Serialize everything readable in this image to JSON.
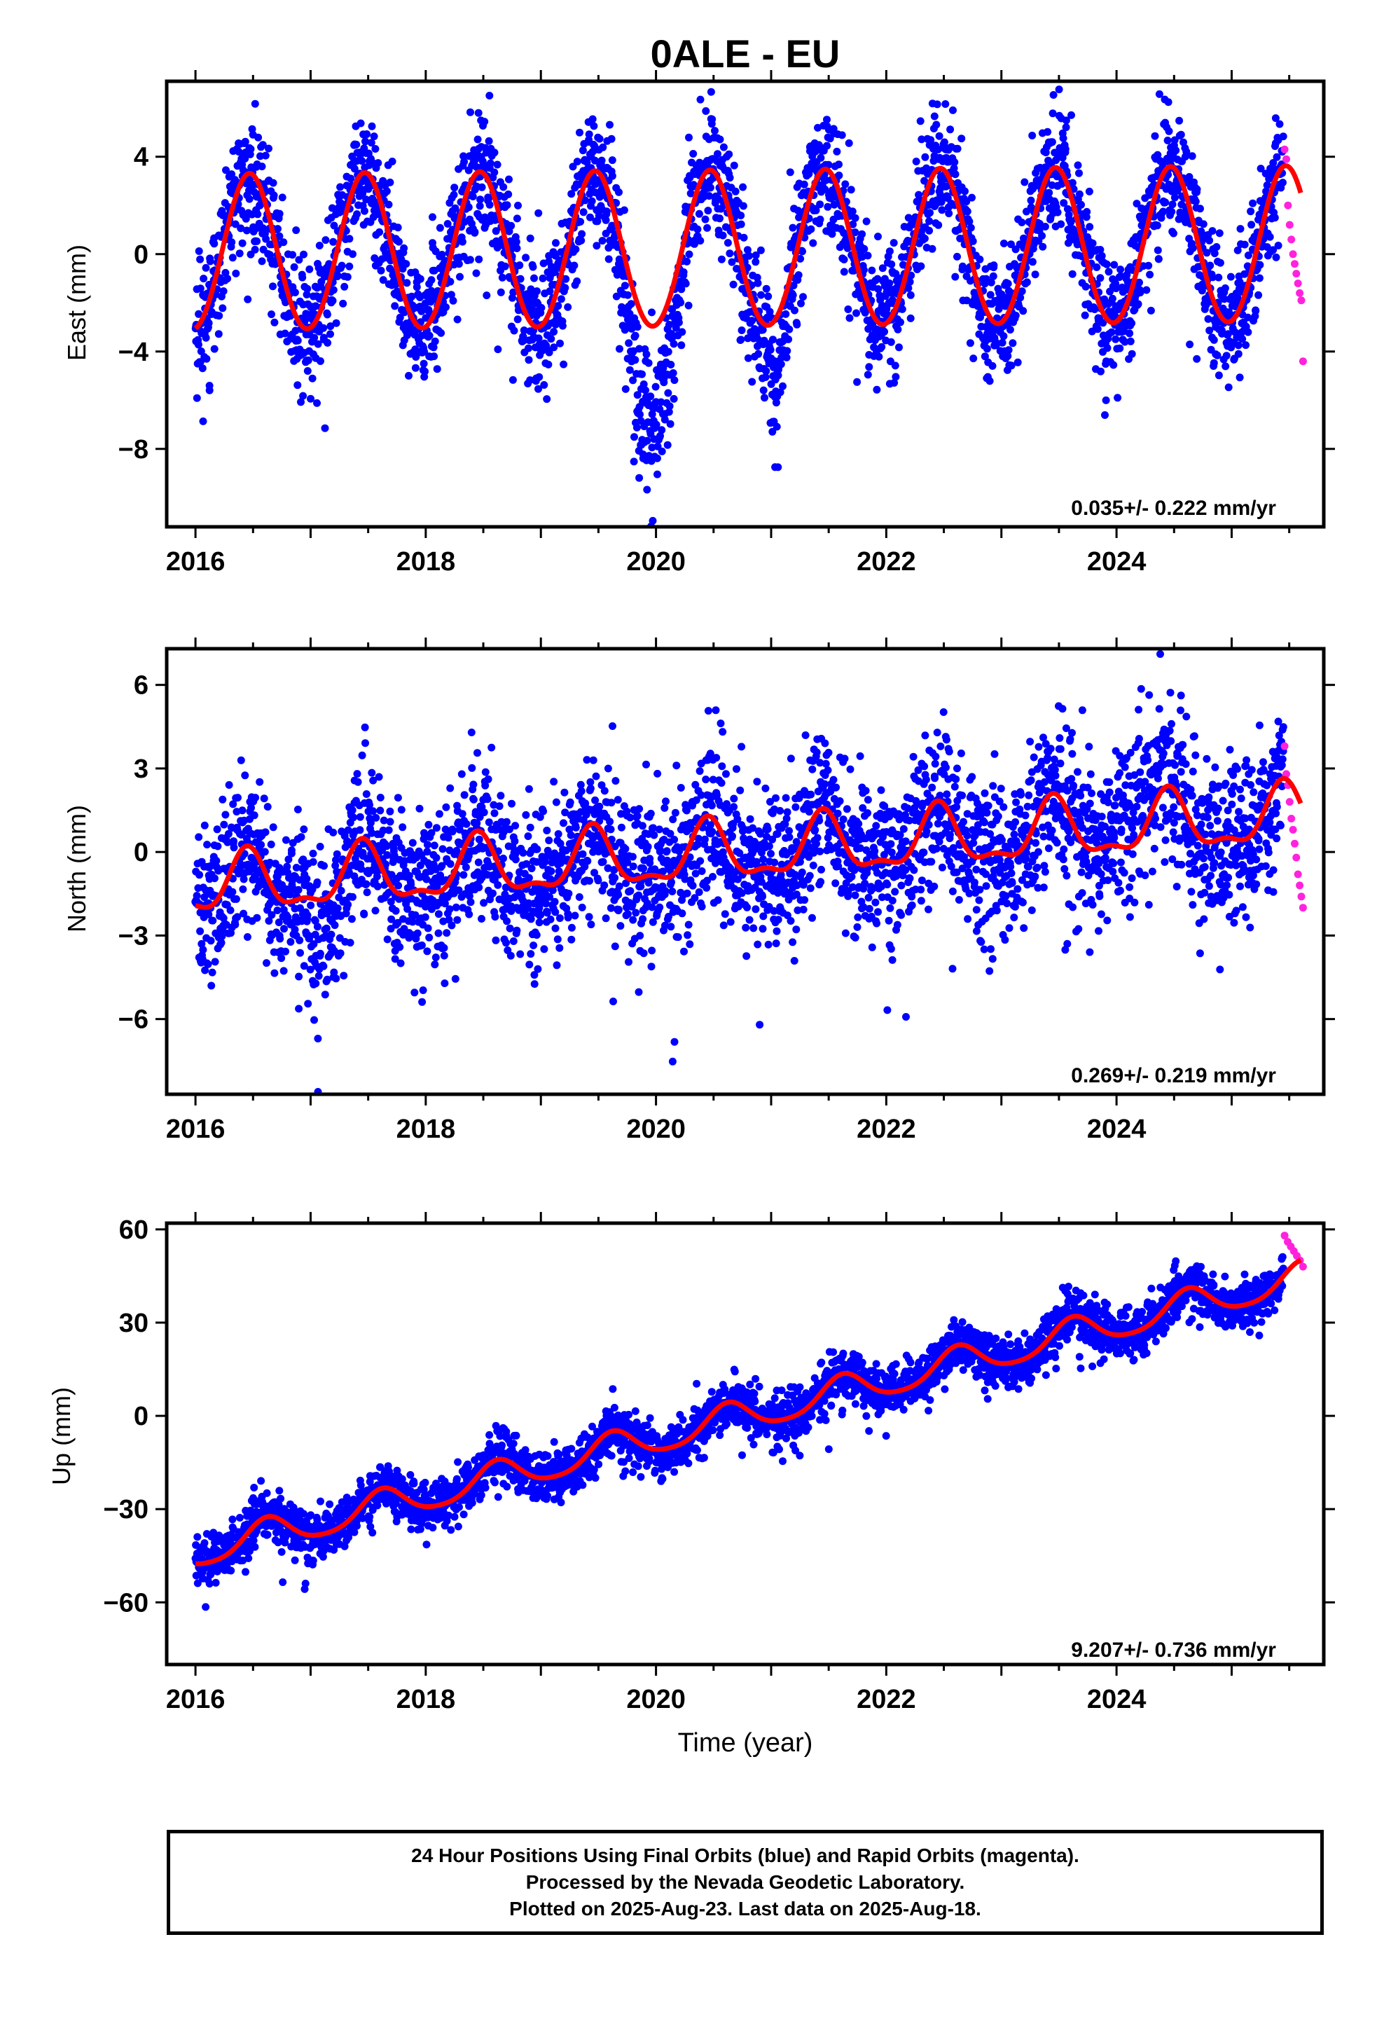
{
  "title": "0ALE - EU",
  "colors": {
    "final": "#0000ff",
    "rapid": "#ff22dd",
    "model": "#ff0000",
    "frame": "#000000"
  },
  "chart_data": [
    {
      "type": "scatter",
      "panel": "east",
      "ylabel": "East (mm)",
      "xlim": [
        2015.75,
        2025.8
      ],
      "ylim": [
        -11.2,
        7.1
      ],
      "x_ticks": [
        2016,
        2018,
        2020,
        2022,
        2024
      ],
      "y_ticks": [
        4,
        0,
        -4,
        -8
      ],
      "y_tick_labels": [
        "4",
        "0",
        "−4",
        "−8"
      ],
      "rate_label": "0.035+/- 0.222 mm/yr",
      "rate": 0.035,
      "rate_error": 0.222,
      "model": {
        "annual_amplitude": 3.2,
        "peak_fraction": 0.47,
        "start_value": -3.4,
        "start": 2016.0,
        "end": 2025.6,
        "linear_rate": 0.035,
        "base": 0.0,
        "semiannual_amplitude": 0.1
      },
      "noise_sigma": 1.3,
      "anomalies": [
        {
          "from": 2019.6,
          "to": 2020.3,
          "offset": -4.5
        },
        {
          "from": 2020.9,
          "to": 2021.2,
          "offset": -2.5
        }
      ],
      "final_x_range": [
        2016.0,
        2025.45
      ],
      "rapid_x_range": [
        2025.46,
        2025.62
      ],
      "rapid_values": [
        4.3,
        3.9,
        2.0,
        1.2,
        0.6,
        0.0,
        -0.4,
        -0.8,
        -1.2,
        -1.6,
        -1.9,
        -4.4
      ]
    },
    {
      "type": "scatter",
      "panel": "north",
      "ylabel": "North (mm)",
      "xlim": [
        2015.75,
        2025.8
      ],
      "ylim": [
        -8.7,
        7.3
      ],
      "x_ticks": [
        2016,
        2018,
        2020,
        2022,
        2024
      ],
      "y_ticks": [
        6,
        3,
        0,
        -3,
        -6
      ],
      "y_tick_labels": [
        "6",
        "3",
        "0",
        "−3",
        "−6"
      ],
      "rate_label": "0.269+/- 0.219 mm/yr",
      "rate": 0.269,
      "rate_error": 0.219,
      "model": {
        "annual_amplitude": 1.0,
        "peak_fraction": 0.45,
        "start_value": -1.2,
        "start": 2016.0,
        "end": 2025.6,
        "linear_rate": 0.269,
        "base": -1.3,
        "semiannual_amplitude": 0.4
      },
      "noise_sigma": 1.4,
      "anomalies": [
        {
          "from": 2016.8,
          "to": 2017.4,
          "offset": -1.5
        },
        {
          "from": 2023.9,
          "to": 2024.5,
          "offset": 1.8
        }
      ],
      "final_x_range": [
        2016.0,
        2025.45
      ],
      "rapid_x_range": [
        2025.46,
        2025.62
      ],
      "rapid_values": [
        3.8,
        2.8,
        2.4,
        1.8,
        1.2,
        0.8,
        0.3,
        -0.2,
        -0.8,
        -1.2,
        -1.6,
        -2.0
      ]
    },
    {
      "type": "scatter",
      "panel": "up",
      "ylabel": "Up (mm)",
      "xlabel": "Time (year)",
      "xlim": [
        2015.75,
        2025.8
      ],
      "ylim": [
        -80,
        62
      ],
      "x_ticks": [
        2016,
        2018,
        2020,
        2022,
        2024
      ],
      "y_ticks": [
        60,
        30,
        0,
        -30,
        -60
      ],
      "y_tick_labels": [
        "60",
        "30",
        "0",
        "−30",
        "−60"
      ],
      "rate_label": "9.207+/- 0.736 mm/yr",
      "rate": 9.207,
      "rate_error": 0.736,
      "model": {
        "annual_amplitude": 5.0,
        "peak_fraction": 0.62,
        "start_value": -50.0,
        "start": 2016.0,
        "end": 2025.6,
        "linear_rate": 9.207,
        "base": -44.0,
        "semiannual_amplitude": 0.8
      },
      "noise_sigma": 4.0,
      "anomalies": [],
      "final_x_range": [
        2016.0,
        2025.45
      ],
      "rapid_x_range": [
        2025.46,
        2025.62
      ],
      "rapid_values": [
        58.0,
        56.0,
        54.5,
        53.0,
        51.5,
        50.0,
        48.0
      ]
    }
  ],
  "footer": {
    "line1": "24 Hour Positions Using Final Orbits (blue) and Rapid Orbits (magenta).",
    "line2": "Processed by the Nevada Geodetic Laboratory.",
    "line3": "Plotted on 2025-Aug-23. Last data on 2025-Aug-18."
  }
}
